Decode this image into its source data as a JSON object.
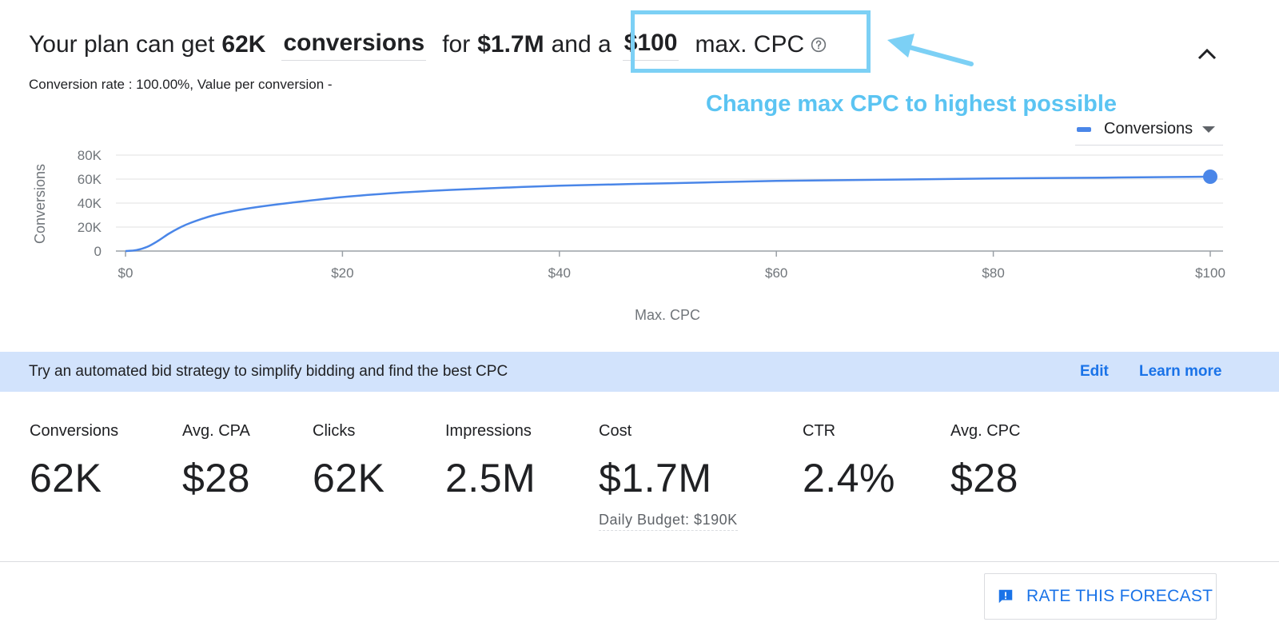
{
  "headline": {
    "prefix": "Your plan can get",
    "conversions_value": "62K",
    "metric_selector": "conversions",
    "for_text": "for",
    "cost_value": "$1.7M",
    "and_a_text": "and a",
    "max_cpc_value": "$100",
    "max_cpc_label": "max. CPC"
  },
  "subline": "Conversion rate : 100.00%, Value per conversion -",
  "annotation": {
    "text": "Change max CPC to highest possible",
    "color": "#5bc4f2"
  },
  "legend": {
    "label": "Conversions"
  },
  "chart_data": {
    "type": "line",
    "xlabel": "Max. CPC",
    "ylabel": "Conversions",
    "x_ticks": [
      "$0",
      "$20",
      "$40",
      "$60",
      "$80",
      "$100"
    ],
    "y_ticks": [
      "0",
      "20K",
      "40K",
      "60K",
      "80K"
    ],
    "xlim": [
      0,
      100
    ],
    "ylim": [
      0,
      80000
    ],
    "grid": true,
    "series": [
      {
        "name": "Conversions",
        "color": "#4a86e8",
        "x": [
          0,
          1,
          2,
          3,
          4,
          5,
          6,
          8,
          10,
          12,
          15,
          20,
          25,
          30,
          40,
          50,
          60,
          70,
          80,
          90,
          100
        ],
        "y": [
          0,
          800,
          3500,
          8500,
          14500,
          19500,
          23500,
          29500,
          33500,
          36500,
          40000,
          45000,
          48500,
          51000,
          54500,
          56500,
          58500,
          59500,
          60500,
          61200,
          62000
        ],
        "highlight_point": {
          "x": 100,
          "y": 62000
        }
      }
    ]
  },
  "banner": {
    "text": "Try an automated bid strategy to simplify bidding and find the best CPC",
    "edit_link": "Edit",
    "learn_more_link": "Learn more"
  },
  "stats": [
    {
      "label": "Conversions",
      "value": "62K"
    },
    {
      "label": "Avg. CPA",
      "value": "$28"
    },
    {
      "label": "Clicks",
      "value": "62K"
    },
    {
      "label": "Impressions",
      "value": "2.5M"
    },
    {
      "label": "Cost",
      "value": "$1.7M",
      "sub": "Daily Budget: $190K"
    },
    {
      "label": "CTR",
      "value": "2.4%"
    },
    {
      "label": "Avg. CPC",
      "value": "$28"
    }
  ],
  "rate_button": {
    "label": "RATE THIS FORECAST",
    "icon": "feedback-icon"
  },
  "colors": {
    "accent": "#1a73e8",
    "line": "#4a86e8",
    "banner_bg": "#d2e3fc",
    "highlight_border": "#7cd0f5"
  }
}
